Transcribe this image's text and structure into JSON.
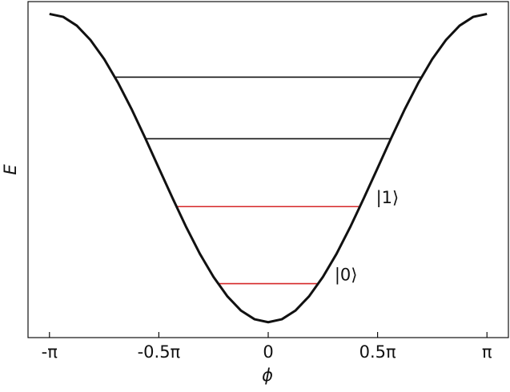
{
  "chart_data": {
    "type": "line",
    "xlabel": "ϕ",
    "ylabel": "E",
    "x": [
      -3.142,
      -2.945,
      -2.749,
      -2.553,
      -2.356,
      -2.16,
      -1.963,
      -1.767,
      -1.571,
      -1.374,
      -1.178,
      -0.982,
      -0.785,
      -0.589,
      -0.393,
      -0.196,
      0,
      0.196,
      0.393,
      0.589,
      0.785,
      0.982,
      1.178,
      1.374,
      1.571,
      1.767,
      1.963,
      2.16,
      2.356,
      2.553,
      2.749,
      2.945,
      3.142
    ],
    "values": [
      2,
      1.981,
      1.924,
      1.831,
      1.707,
      1.556,
      1.383,
      1.195,
      1,
      0.805,
      0.617,
      0.444,
      0.293,
      0.169,
      0.076,
      0.019,
      0,
      0.019,
      0.076,
      0.169,
      0.293,
      0.444,
      0.617,
      0.805,
      1,
      1.195,
      1.383,
      1.556,
      1.707,
      1.831,
      1.924,
      1.981,
      2
    ],
    "color": "#111111",
    "levels": [
      {
        "energy": 0.25,
        "x": [
          -0.723,
          0.723
        ],
        "color": "#d62728",
        "label": "|0⟩"
      },
      {
        "energy": 0.75,
        "x": [
          -1.318,
          1.318
        ],
        "color": "#d62728",
        "label": "|1⟩"
      },
      {
        "energy": 1.19,
        "x": [
          -1.762,
          1.762
        ],
        "color": "#111111"
      },
      {
        "energy": 1.59,
        "x": [
          -2.202,
          2.202
        ],
        "color": "#111111"
      }
    ],
    "xlim": [
      -3.45,
      3.45
    ],
    "ylim": [
      -0.1,
      2.08
    ],
    "xticks": [
      {
        "value": -3.142,
        "label": "-π"
      },
      {
        "value": -1.571,
        "label": "-0.5π"
      },
      0,
      {
        "value": 1.571,
        "label": "0.5π"
      },
      {
        "value": 3.142,
        "label": "π"
      }
    ]
  }
}
